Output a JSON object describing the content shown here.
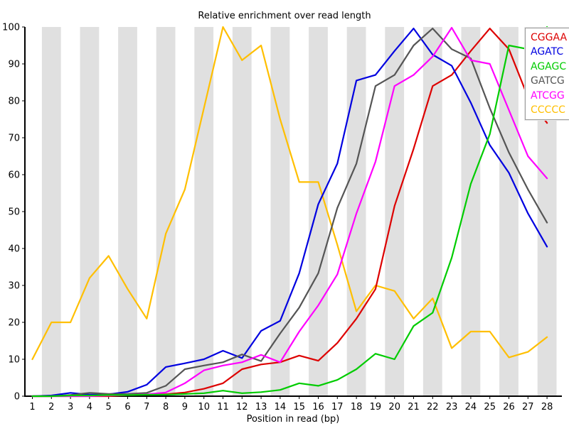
{
  "chart_data": {
    "type": "line",
    "title": "Relative enrichment over read length",
    "xlabel": "Position in read (bp)",
    "ylabel": "",
    "xlim": [
      1,
      28
    ],
    "ylim": [
      0,
      100
    ],
    "x_ticks": [
      1,
      2,
      3,
      4,
      5,
      6,
      7,
      8,
      9,
      10,
      11,
      12,
      13,
      14,
      15,
      16,
      17,
      18,
      19,
      20,
      21,
      22,
      23,
      24,
      25,
      26,
      27,
      28
    ],
    "y_ticks": [
      0,
      10,
      20,
      30,
      40,
      50,
      60,
      70,
      80,
      90,
      100
    ],
    "grid": "alternating-vertical-bands-on-even-positions",
    "band_color": "#e0e0e0",
    "legend_position": "top-right",
    "categories": [
      1,
      2,
      3,
      4,
      5,
      6,
      7,
      8,
      9,
      10,
      11,
      12,
      13,
      14,
      15,
      16,
      17,
      18,
      19,
      20,
      21,
      22,
      23,
      24,
      25,
      26,
      27,
      28
    ],
    "series": [
      {
        "name": "CGGAA",
        "color": "#dd0000",
        "values": [
          0,
          0,
          0,
          0,
          0,
          0.3,
          0.5,
          0.5,
          1,
          2,
          3.5,
          7.3,
          8.6,
          9.2,
          11,
          9.6,
          14.4,
          21,
          29,
          51.5,
          67,
          84,
          87,
          93.5,
          99.6,
          94,
          81,
          74
        ]
      },
      {
        "name": "AGATC",
        "color": "#0000e0",
        "values": [
          0,
          0.2,
          0.9,
          0.4,
          0.5,
          1.2,
          3.1,
          7.9,
          8.9,
          10,
          12.3,
          10.3,
          17.7,
          20.4,
          33.3,
          52,
          63,
          85.5,
          87,
          93.5,
          99.6,
          92.5,
          89.5,
          79.5,
          68,
          60.5,
          49.5,
          40.5
        ]
      },
      {
        "name": "AGAGC",
        "color": "#00cc00",
        "values": [
          0,
          0,
          0.2,
          0.2,
          0.3,
          0.3,
          0.4,
          0.4,
          0.6,
          0.8,
          1.5,
          0.8,
          1.1,
          1.7,
          3.5,
          2.8,
          4.4,
          7.3,
          11.5,
          10,
          19,
          22.6,
          37.5,
          57.5,
          71,
          95,
          94,
          100
        ]
      },
      {
        "name": "GATCG",
        "color": "#555555",
        "values": [
          0,
          0,
          0.3,
          0.9,
          0.6,
          0.6,
          0.9,
          2.8,
          7.3,
          8.3,
          9.2,
          11.3,
          9.5,
          17,
          24,
          33.3,
          51,
          63,
          84,
          87,
          95,
          99.6,
          94,
          91.5,
          78,
          66,
          56,
          47
        ]
      },
      {
        "name": "ATCGG",
        "color": "#ff00ff",
        "values": [
          0,
          0,
          0,
          0,
          0.2,
          0.3,
          0.5,
          1,
          3.5,
          7,
          8.3,
          9.2,
          11.2,
          9.2,
          17.5,
          24.6,
          33,
          49.5,
          63.5,
          84,
          87,
          92,
          99.8,
          91,
          90,
          77.5,
          65,
          59
        ]
      },
      {
        "name": "CCCCC",
        "color": "#ffbf00",
        "values": [
          10,
          20,
          20,
          32,
          38,
          29,
          21,
          44,
          56,
          78,
          100,
          91,
          95,
          75,
          58,
          58,
          41,
          23,
          30,
          28.5,
          21,
          26.5,
          13,
          17.5,
          17.5,
          10.5,
          12,
          16
        ]
      }
    ]
  }
}
